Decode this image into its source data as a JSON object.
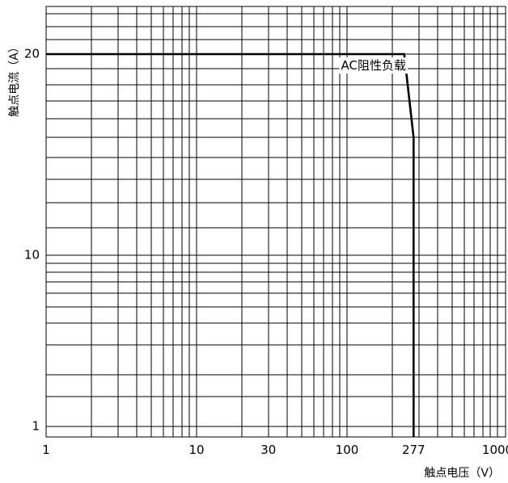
{
  "chart_data": {
    "type": "line",
    "xlabel": "触点电压（V）",
    "ylabel": "触点电流（A）",
    "x_scale": "log",
    "y_scale": "piecewise-log",
    "xlim": [
      1,
      1200
    ],
    "ylim": [
      1,
      30
    ],
    "grid": true,
    "x_ticks": [
      {
        "value": 1,
        "label": "1"
      },
      {
        "value": 10,
        "label": "10"
      },
      {
        "value": 30,
        "label": "30"
      },
      {
        "value": 100,
        "label": "100"
      },
      {
        "value": 277,
        "label": "277"
      },
      {
        "value": 1000,
        "label": "1000"
      }
    ],
    "y_ticks": [
      {
        "value": 1,
        "label": "1"
      },
      {
        "value": 10,
        "label": "10"
      },
      {
        "value": 20,
        "label": "20"
      }
    ],
    "series": [
      {
        "x": [
          1,
          240,
          277,
          277
        ],
        "y": [
          20,
          20,
          15,
          1
        ]
      }
    ],
    "annotations": [
      {
        "text": "AC阻性负载",
        "x": 150,
        "y": 19.2
      }
    ]
  }
}
